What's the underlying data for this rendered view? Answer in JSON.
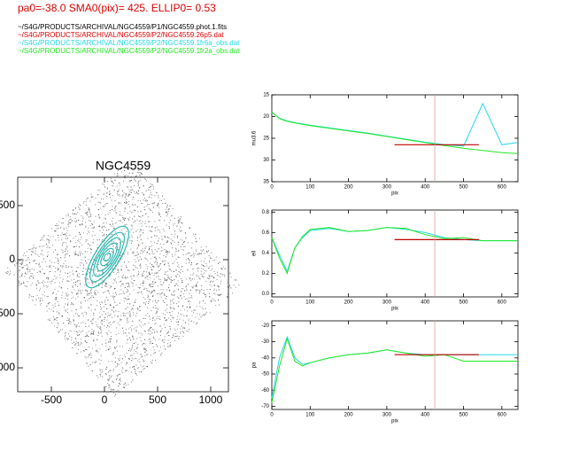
{
  "header": {
    "params": "pa0=-38.0  SMA0(pix)= 425.  ELLIP0= 0.53",
    "files": [
      {
        "text": "~/S4G/PRODUCTS/ARCHIVAL/NGC4559/P1/NGC4559.phot.1.fits",
        "color": "#000000"
      },
      {
        "text": "~/S4G/PRODUCTS/ARCHIVAL/NGC4559/P2/NGC4559.26p5.dat",
        "color": "#e00000"
      },
      {
        "text": "~/S4G/PRODUCTS/ARCHIVAL/NGC4559/P2/NGC4559.1fr6a_obs.dat",
        "color": "#22d8e8"
      },
      {
        "text": "~/S4G/PRODUCTS/ARCHIVAL/NGC4559/P2/NGC4559.1fr2a_obs.dat",
        "color": "#22e822"
      }
    ]
  },
  "chart_data": [
    {
      "type": "image",
      "title": "NGC4559",
      "xlim": [
        -817,
        1167
      ],
      "ylim": [
        -1221,
        762
      ],
      "xticks": [
        -500,
        0,
        500,
        1000
      ],
      "yticks": [
        -1000,
        -500,
        0,
        500
      ]
    },
    {
      "type": "line",
      "ylabel": "mu3.6",
      "xlabel": "pix",
      "xlim": [
        0,
        642
      ],
      "ylim": [
        15,
        35
      ],
      "reversed": true,
      "xticks": [
        0,
        100,
        200,
        300,
        400,
        500,
        600
      ],
      "yticks": [
        15,
        20,
        25,
        30,
        35
      ],
      "x": [
        0,
        20,
        40,
        60,
        80,
        100,
        150,
        200,
        250,
        300,
        350,
        400,
        450,
        500,
        550,
        600,
        640
      ],
      "series": [
        {
          "color": "#22d8e8",
          "values": [
            19,
            20.4,
            21,
            21.4,
            21.7,
            22,
            22.6,
            23.2,
            23.8,
            24.5,
            25.2,
            25.9,
            26.5,
            26.8,
            17,
            26.5,
            26
          ]
        },
        {
          "color": "#22e822",
          "values": [
            19,
            20.5,
            21.1,
            21.5,
            21.8,
            22.1,
            22.7,
            23.3,
            23.9,
            24.6,
            25.3,
            26,
            26.7,
            27.3,
            27.8,
            28.3,
            28.5
          ]
        },
        {
          "color": "#c00000",
          "x": [
            320,
            540
          ],
          "values": [
            26.5,
            26.5
          ]
        }
      ],
      "vline": {
        "x": 425,
        "color": "#e0a090"
      }
    },
    {
      "type": "line",
      "ylabel": "ell",
      "xlabel": "pix",
      "xlim": [
        0,
        642
      ],
      "ylim": [
        -0.03,
        0.82
      ],
      "reversed": false,
      "xticks": [
        0,
        100,
        200,
        300,
        400,
        500,
        600
      ],
      "yticks": [
        {
          "value": 0,
          "label": "0.0"
        },
        0.2,
        0.4,
        0.6,
        0.8
      ],
      "x": [
        0,
        20,
        40,
        60,
        80,
        100,
        150,
        200,
        250,
        300,
        350,
        400,
        450,
        500,
        550,
        600,
        640
      ],
      "series": [
        {
          "color": "#22d8e8",
          "values": [
            0.55,
            0.38,
            0.22,
            0.45,
            0.55,
            0.62,
            0.64,
            0.61,
            0.62,
            0.65,
            0.63,
            0.6,
            0.55,
            0.53,
            0.52,
            0.52,
            0.52
          ]
        },
        {
          "color": "#22e822",
          "values": [
            0.55,
            0.35,
            0.2,
            0.45,
            0.56,
            0.63,
            0.65,
            0.61,
            0.62,
            0.65,
            0.64,
            0.58,
            0.54,
            0.55,
            0.52,
            0.52,
            0.52
          ]
        },
        {
          "color": "#c00000",
          "x": [
            320,
            540
          ],
          "values": [
            0.53,
            0.53
          ]
        }
      ],
      "vline": {
        "x": 425,
        "color": "#e0a090"
      }
    },
    {
      "type": "line",
      "ylabel": "pa",
      "xlabel": "pix",
      "xlim": [
        0,
        642
      ],
      "ylim": [
        -72,
        -17
      ],
      "reversed": false,
      "xticks": [
        0,
        100,
        200,
        300,
        400,
        500,
        600
      ],
      "yticks": [
        -70,
        -60,
        -50,
        -40,
        -30,
        -20
      ],
      "x": [
        0,
        20,
        40,
        60,
        80,
        100,
        150,
        200,
        250,
        300,
        350,
        400,
        450,
        500,
        550,
        600,
        640
      ],
      "series": [
        {
          "color": "#22d8e8",
          "values": [
            -65,
            -40,
            -27,
            -40,
            -44,
            -43,
            -40,
            -38,
            -37,
            -35,
            -37,
            -38,
            -38,
            -38,
            -38,
            -38,
            -38
          ]
        },
        {
          "color": "#22e822",
          "values": [
            -68,
            -45,
            -28,
            -42,
            -45,
            -43,
            -40,
            -38,
            -37,
            -35,
            -37,
            -39,
            -38,
            -42,
            -42,
            -42,
            -42
          ]
        },
        {
          "color": "#c00000",
          "x": [
            320,
            540
          ],
          "values": [
            -38,
            -38
          ]
        }
      ],
      "vline": {
        "x": 425,
        "color": "#e0a090"
      }
    }
  ]
}
